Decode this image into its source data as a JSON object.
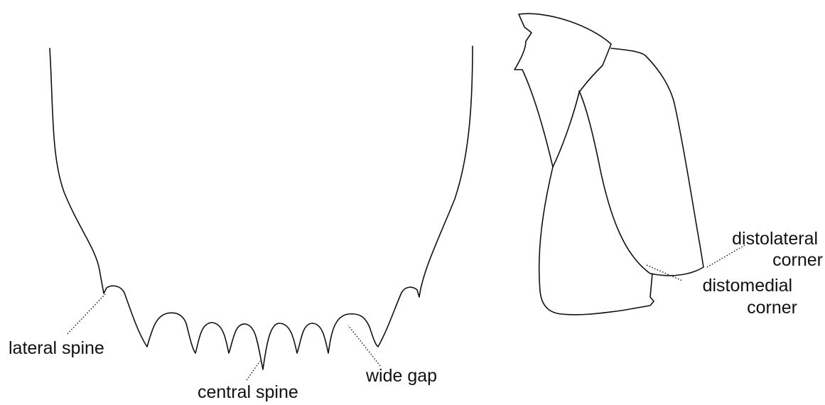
{
  "labels": [
    {
      "lines": [
        "lateral spine"
      ]
    },
    {
      "lines": [
        "central spine"
      ]
    },
    {
      "lines": [
        "wide gap"
      ]
    },
    {
      "lines": [
        "distolateral",
        "corner"
      ]
    },
    {
      "lines": [
        "distomedial",
        "corner"
      ]
    }
  ]
}
